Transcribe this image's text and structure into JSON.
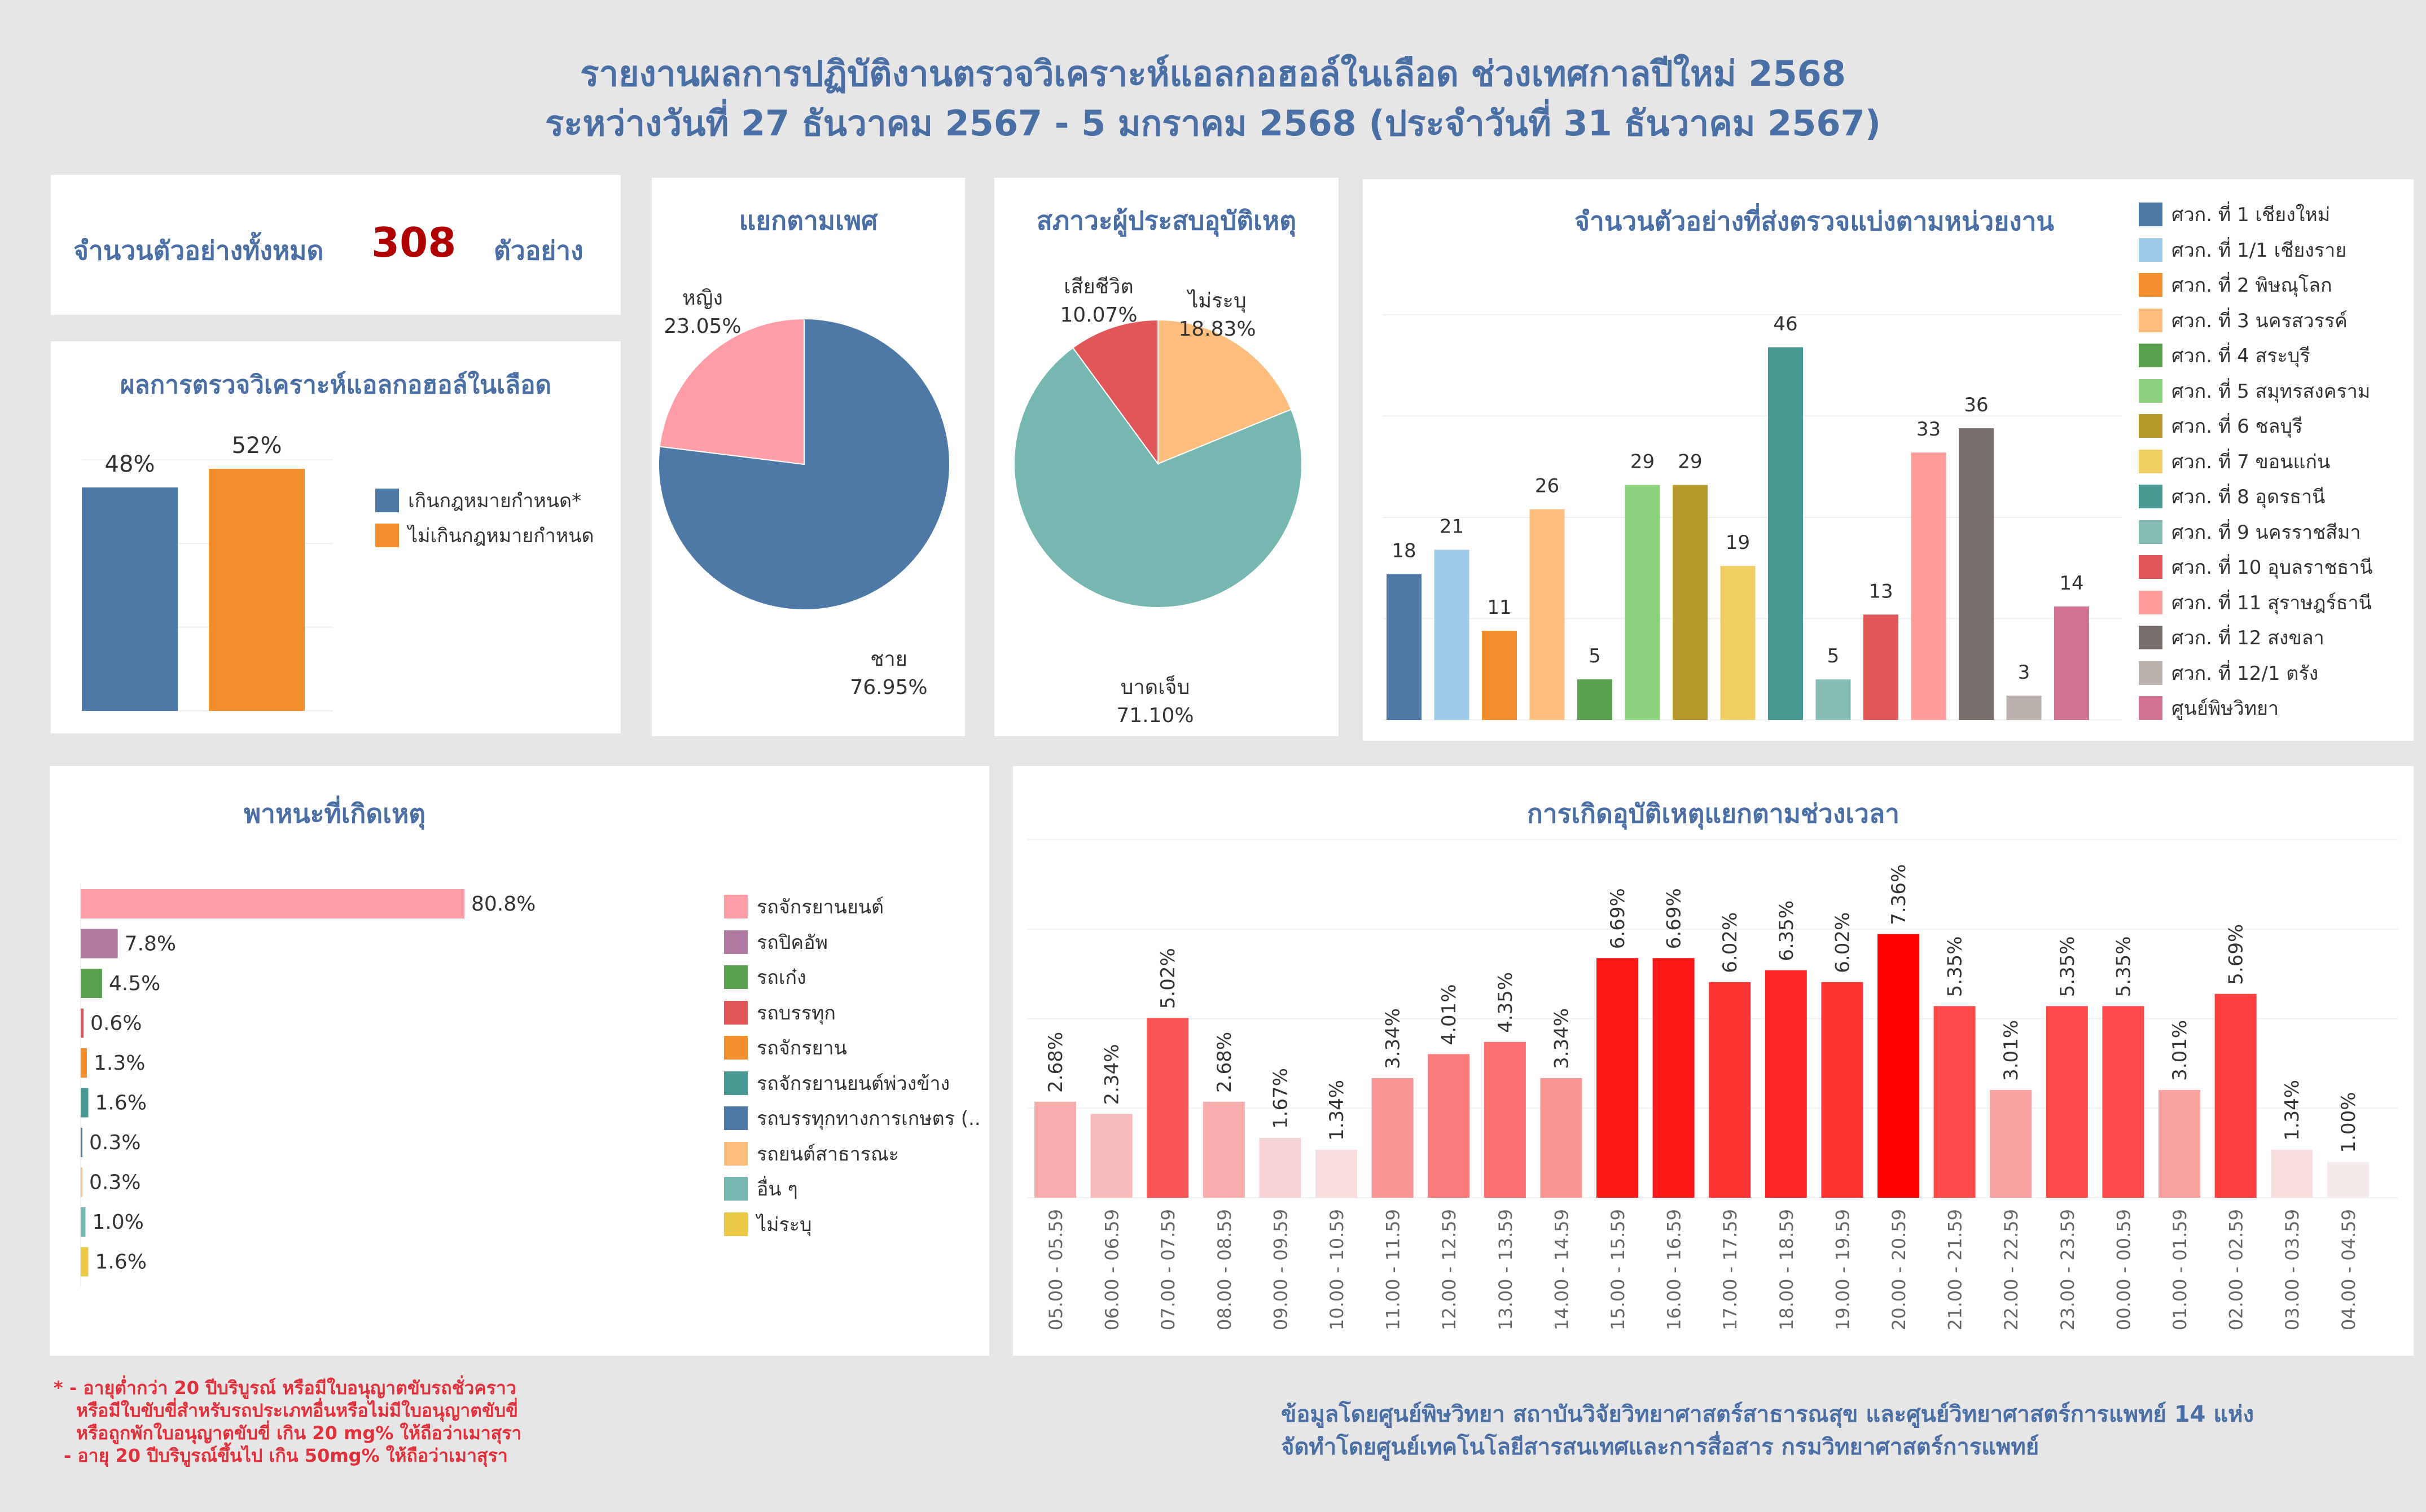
{
  "header": {
    "title_line1": "รายงานผลการปฏิบัติงานตรวจวิเคราะห์แอลกอฮอล์ในเลือด ช่วงเทศกาลปีใหม่ 2568",
    "title_line2": "ระหว่างวันที่ 27 ธันวาคม 2567 - 5 มกราคม 2568 (ประจำวันที่ 31 ธันวาคม 2567)"
  },
  "total": {
    "label": "จำนวนตัวอย่างทั้งหมด",
    "value": "308",
    "unit": "ตัวอย่าง"
  },
  "colors": {
    "title": "#4a6fa5",
    "total_value": "#b00000",
    "footnote": "#e0303a"
  },
  "chart_data": [
    {
      "id": "alcohol_result",
      "type": "bar",
      "title": "ผลการตรวจวิเคราะห์แอลกอฮอล์ในเลือด",
      "categories": [
        "เกินกฎหมายกำหนด*",
        "ไม่เกินกฎหมายกำหนด"
      ],
      "values": [
        48,
        52
      ],
      "value_labels": [
        "48%",
        "52%"
      ],
      "colors": [
        "#4e79a7",
        "#f28e2b"
      ],
      "ylim": [
        0,
        60
      ],
      "legend": "right"
    },
    {
      "id": "gender",
      "type": "pie",
      "title": "แยกตามเพศ",
      "categories": [
        "ชาย",
        "หญิง"
      ],
      "values": [
        76.95,
        23.05
      ],
      "value_labels": [
        "76.95%",
        "23.05%"
      ],
      "colors": [
        "#4e79a7",
        "#ff9da7"
      ]
    },
    {
      "id": "victim_status",
      "type": "pie",
      "title": "สภาวะผู้ประสบอุบัติเหตุ",
      "categories": [
        "ไม่ระบุ",
        "บาดเจ็บ",
        "เสียชีวิต"
      ],
      "values": [
        18.83,
        71.1,
        10.07
      ],
      "value_labels": [
        "18.83%",
        "71.10%",
        "10.07%"
      ],
      "colors": [
        "#ffbe7d",
        "#76b7b2",
        "#e15759"
      ]
    },
    {
      "id": "samples_by_unit",
      "type": "bar",
      "title": "จำนวนตัวอย่างที่ส่งตรวจแบ่งตามหน่วยงาน",
      "categories": [
        "ศวก. ที่ 1 เชียงใหม่",
        "ศวก. ที่ 1/1 เชียงราย",
        "ศวก. ที่ 2 พิษณุโลก",
        "ศวก. ที่ 3 นครสวรรค์",
        "ศวก. ที่ 4 สระบุรี",
        "ศวก. ที่ 5 สมุทรสงคราม",
        "ศวก. ที่ 6 ชลบุรี",
        "ศวก. ที่ 7 ขอนแก่น",
        "ศวก. ที่ 8 อุดรธานี",
        "ศวก. ที่ 9 นครราชสีมา",
        "ศวก. ที่ 10 อุบลราชธานี",
        "ศวก. ที่ 11 สุราษฎร์ธานี",
        "ศวก. ที่ 12 สงขลา",
        "ศวก. ที่ 12/1 ตรัง",
        "ศูนย์พิษวิทยา"
      ],
      "values": [
        18,
        21,
        11,
        26,
        5,
        29,
        29,
        19,
        46,
        5,
        13,
        33,
        36,
        3,
        14
      ],
      "colors": [
        "#4e79a7",
        "#a0cbe8",
        "#f28e2b",
        "#ffbe7d",
        "#59a14f",
        "#8cd17d",
        "#b6992d",
        "#f1ce63",
        "#499894",
        "#86bcb6",
        "#e15759",
        "#ff9d9a",
        "#79706e",
        "#bab0ac",
        "#d37295"
      ],
      "ylim": [
        0,
        50
      ],
      "legend": "right"
    },
    {
      "id": "vehicle",
      "type": "bar",
      "orientation": "horizontal",
      "title": "พาหนะที่เกิดเหตุ",
      "categories": [
        "รถจักรยานยนต์",
        "รถปิคอัพ",
        "รถเก๋ง",
        "รถบรรทุก",
        "รถจักรยาน",
        "รถจักรยานยนต์พ่วงข้าง",
        "รถบรรทุกทางการเกษตร (..",
        "รถยนต์สาธารณะ",
        "อื่น ๆ",
        "ไม่ระบุ"
      ],
      "values": [
        80.8,
        7.8,
        4.5,
        0.6,
        1.3,
        1.6,
        0.3,
        0.3,
        1.0,
        1.6
      ],
      "value_labels": [
        "80.8%",
        "7.8%",
        "4.5%",
        "0.6%",
        "1.3%",
        "1.6%",
        "0.3%",
        "0.3%",
        "1.0%",
        "1.6%"
      ],
      "colors": [
        "#ff9da7",
        "#b07aa1",
        "#59a14f",
        "#e15759",
        "#f28e2b",
        "#499894",
        "#4e79a7",
        "#ffbe7d",
        "#76b7b2",
        "#edc948"
      ],
      "legend": "right"
    },
    {
      "id": "time_of_day",
      "type": "bar",
      "title": "การเกิดอุบัติเหตุแยกตามช่วงเวลา",
      "categories": [
        "05.00 - 05.59",
        "06.00 - 06.59",
        "07.00 - 07.59",
        "08.00 - 08.59",
        "09.00 - 09.59",
        "10.00 - 10.59",
        "11.00 - 11.59",
        "12.00 - 12.59",
        "13.00 - 13.59",
        "14.00 - 14.59",
        "15.00 - 15.59",
        "16.00 - 16.59",
        "17.00 - 17.59",
        "18.00 - 18.59",
        "19.00 - 19.59",
        "20.00 - 20.59",
        "21.00 - 21.59",
        "22.00 - 22.59",
        "23.00 - 23.59",
        "00.00 - 00.59",
        "01.00 - 01.59",
        "02.00 - 02.59",
        "03.00 - 03.59",
        "04.00 - 04.59"
      ],
      "values": [
        2.68,
        2.34,
        5.02,
        2.68,
        1.67,
        1.34,
        3.34,
        4.01,
        4.35,
        3.34,
        6.69,
        6.69,
        6.02,
        6.35,
        6.02,
        7.36,
        5.35,
        3.01,
        5.35,
        5.35,
        3.01,
        5.69,
        1.34,
        1.0
      ],
      "value_labels": [
        "2.68%",
        "2.34%",
        "5.02%",
        "2.68%",
        "1.67%",
        "1.34%",
        "3.34%",
        "4.01%",
        "4.35%",
        "3.34%",
        "6.69%",
        "6.69%",
        "6.02%",
        "6.35%",
        "6.02%",
        "7.36%",
        "5.35%",
        "3.01%",
        "5.35%",
        "5.35%",
        "3.01%",
        "5.69%",
        "1.34%",
        "1.00%"
      ],
      "ylim": [
        0,
        10
      ],
      "color_scale": [
        "#f0f0f0",
        "#ff0000"
      ]
    }
  ],
  "footnote": {
    "lines": [
      "* - อายุต่ำกว่า 20 ปีบริบูรณ์ หรือมีใบอนุญาตขับรถชั่วคราว",
      "หรือมีใบขับขี่สำหรับรถประเภทอื่นหรือไม่มีใบอนุญาตขับขี่",
      "หรือถูกพักใบอนุญาตขับขี่ เกิน 20 mg% ให้ถือว่าเมาสุรา",
      "- อายุ 20 ปีบริบูรณ์ขึ้นไป เกิน 50mg% ให้ถือว่าเมาสุรา"
    ]
  },
  "credit": {
    "line1": "ข้อมูลโดยศูนย์พิษวิทยา สถาบันวิจัยวิทยาศาสตร์สาธารณสุข และศูนย์วิทยาศาสตร์การแพทย์ 14 แห่ง",
    "line2": "จัดทำโดยศูนย์เทคโนโลยีสารสนเทศและการสื่อสาร กรมวิทยาศาสตร์การแพทย์"
  }
}
